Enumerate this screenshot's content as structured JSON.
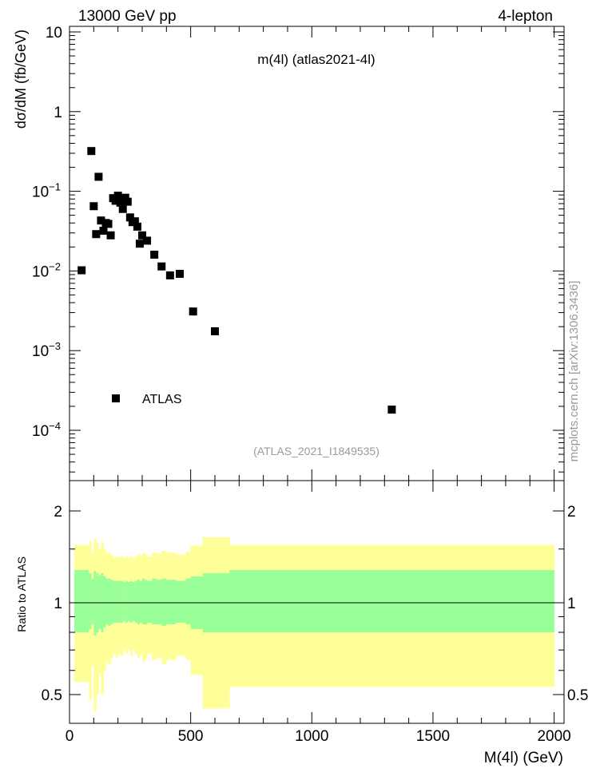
{
  "header": {
    "left": "13000 GeV pp",
    "right": "4-lepton"
  },
  "side_label": "mcplots.cern.ch [arXiv:1306.3436]",
  "chart_data": [
    {
      "panel": "main",
      "type": "scatter",
      "title": "m(4l) (atlas2021-4l)",
      "subtitle": "(ATLAS_2021_I1849535)",
      "xlabel": "M(4l) (GeV)",
      "ylabel": "dσ/dM (fb/GeV)",
      "xlim": [
        0,
        2000
      ],
      "ylim_log": [
        2e-05,
        10
      ],
      "yscale": "log",
      "y_ticks": [
        {
          "value": 10,
          "base": "10",
          "exp": ""
        },
        {
          "value": 1,
          "base": "1",
          "exp": ""
        },
        {
          "value": 0.1,
          "base": "10",
          "exp": "−1"
        },
        {
          "value": 0.01,
          "base": "10",
          "exp": "−2"
        },
        {
          "value": 0.001,
          "base": "10",
          "exp": "−3"
        },
        {
          "value": 0.0001,
          "base": "10",
          "exp": "−4"
        }
      ],
      "legend": {
        "label": "ATLAS",
        "placement": "lower-left"
      },
      "grid": false,
      "series": [
        {
          "name": "ATLAS",
          "marker": "square",
          "color": "#000000",
          "points": [
            [
              50,
              0.0102
            ],
            [
              90,
              0.32
            ],
            [
              100,
              0.065
            ],
            [
              110,
              0.029
            ],
            [
              120,
              0.152
            ],
            [
              130,
              0.043
            ],
            [
              140,
              0.032
            ],
            [
              150,
              0.04
            ],
            [
              160,
              0.039
            ],
            [
              170,
              0.028
            ],
            [
              180,
              0.082
            ],
            [
              190,
              0.076
            ],
            [
              200,
              0.088
            ],
            [
              210,
              0.072
            ],
            [
              220,
              0.06
            ],
            [
              230,
              0.083
            ],
            [
              240,
              0.074
            ],
            [
              250,
              0.047
            ],
            [
              260,
              0.041
            ],
            [
              270,
              0.042
            ],
            [
              280,
              0.036
            ],
            [
              290,
              0.022
            ],
            [
              300,
              0.028
            ],
            [
              320,
              0.024
            ],
            [
              350,
              0.016
            ],
            [
              380,
              0.0114
            ],
            [
              415,
              0.0088
            ],
            [
              455,
              0.0092
            ],
            [
              510,
              0.0031
            ],
            [
              600,
              0.00175
            ],
            [
              1330,
              0.000182
            ]
          ]
        }
      ]
    },
    {
      "panel": "ratio",
      "type": "area",
      "ylabel": "Ratio to ATLAS",
      "xlabel": "M(4l) (GeV)",
      "xlim": [
        0,
        2000
      ],
      "ylim_log": [
        0.4,
        2.4
      ],
      "yscale": "log",
      "y_ticks": [
        0.5,
        1,
        2
      ],
      "y_tick_labels": [
        "0.5",
        "1",
        "2"
      ],
      "x_ticks": [
        0,
        500,
        1000,
        1500,
        2000
      ],
      "reference_line": 1,
      "colors": {
        "inner_band": "#99ff99",
        "outer_band": "#ffff99"
      },
      "bins": [
        {
          "x0": 20,
          "x1": 80,
          "outer_lo": 0.55,
          "outer_hi": 1.55,
          "inner_lo": 0.8,
          "inner_hi": 1.28
        },
        {
          "x0": 80,
          "x1": 90,
          "outer_lo": 0.48,
          "outer_hi": 1.6,
          "inner_lo": 0.82,
          "inner_hi": 1.25
        },
        {
          "x0": 90,
          "x1": 100,
          "outer_lo": 0.62,
          "outer_hi": 1.45,
          "inner_lo": 0.85,
          "inner_hi": 1.2
        },
        {
          "x0": 100,
          "x1": 110,
          "outer_lo": 0.44,
          "outer_hi": 1.62,
          "inner_lo": 0.78,
          "inner_hi": 1.27
        },
        {
          "x0": 110,
          "x1": 120,
          "outer_lo": 0.5,
          "outer_hi": 1.57,
          "inner_lo": 0.8,
          "inner_hi": 1.25
        },
        {
          "x0": 120,
          "x1": 130,
          "outer_lo": 0.58,
          "outer_hi": 1.5,
          "inner_lo": 0.82,
          "inner_hi": 1.23
        },
        {
          "x0": 130,
          "x1": 140,
          "outer_lo": 0.5,
          "outer_hi": 1.58,
          "inner_lo": 0.8,
          "inner_hi": 1.25
        },
        {
          "x0": 140,
          "x1": 150,
          "outer_lo": 0.6,
          "outer_hi": 1.5,
          "inner_lo": 0.83,
          "inner_hi": 1.22
        },
        {
          "x0": 150,
          "x1": 160,
          "outer_lo": 0.64,
          "outer_hi": 1.45,
          "inner_lo": 0.85,
          "inner_hi": 1.2
        },
        {
          "x0": 160,
          "x1": 170,
          "outer_lo": 0.63,
          "outer_hi": 1.46,
          "inner_lo": 0.84,
          "inner_hi": 1.2
        },
        {
          "x0": 170,
          "x1": 180,
          "outer_lo": 0.66,
          "outer_hi": 1.43,
          "inner_lo": 0.85,
          "inner_hi": 1.19
        },
        {
          "x0": 180,
          "x1": 190,
          "outer_lo": 0.68,
          "outer_hi": 1.41,
          "inner_lo": 0.86,
          "inner_hi": 1.18
        },
        {
          "x0": 190,
          "x1": 200,
          "outer_lo": 0.66,
          "outer_hi": 1.42,
          "inner_lo": 0.86,
          "inner_hi": 1.18
        },
        {
          "x0": 200,
          "x1": 210,
          "outer_lo": 0.68,
          "outer_hi": 1.41,
          "inner_lo": 0.86,
          "inner_hi": 1.18
        },
        {
          "x0": 210,
          "x1": 220,
          "outer_lo": 0.67,
          "outer_hi": 1.42,
          "inner_lo": 0.86,
          "inner_hi": 1.18
        },
        {
          "x0": 220,
          "x1": 230,
          "outer_lo": 0.7,
          "outer_hi": 1.4,
          "inner_lo": 0.87,
          "inner_hi": 1.17
        },
        {
          "x0": 230,
          "x1": 240,
          "outer_lo": 0.68,
          "outer_hi": 1.42,
          "inner_lo": 0.86,
          "inner_hi": 1.18
        },
        {
          "x0": 240,
          "x1": 250,
          "outer_lo": 0.7,
          "outer_hi": 1.4,
          "inner_lo": 0.87,
          "inner_hi": 1.17
        },
        {
          "x0": 250,
          "x1": 260,
          "outer_lo": 0.67,
          "outer_hi": 1.42,
          "inner_lo": 0.86,
          "inner_hi": 1.18
        },
        {
          "x0": 260,
          "x1": 270,
          "outer_lo": 0.7,
          "outer_hi": 1.4,
          "inner_lo": 0.87,
          "inner_hi": 1.17
        },
        {
          "x0": 270,
          "x1": 280,
          "outer_lo": 0.68,
          "outer_hi": 1.42,
          "inner_lo": 0.86,
          "inner_hi": 1.18
        },
        {
          "x0": 280,
          "x1": 290,
          "outer_lo": 0.66,
          "outer_hi": 1.44,
          "inner_lo": 0.85,
          "inner_hi": 1.19
        },
        {
          "x0": 290,
          "x1": 300,
          "outer_lo": 0.68,
          "outer_hi": 1.42,
          "inner_lo": 0.86,
          "inner_hi": 1.18
        },
        {
          "x0": 300,
          "x1": 310,
          "outer_lo": 0.64,
          "outer_hi": 1.46,
          "inner_lo": 0.85,
          "inner_hi": 1.2
        },
        {
          "x0": 310,
          "x1": 320,
          "outer_lo": 0.66,
          "outer_hi": 1.44,
          "inner_lo": 0.85,
          "inner_hi": 1.19
        },
        {
          "x0": 320,
          "x1": 340,
          "outer_lo": 0.68,
          "outer_hi": 1.42,
          "inner_lo": 0.86,
          "inner_hi": 1.18
        },
        {
          "x0": 340,
          "x1": 360,
          "outer_lo": 0.65,
          "outer_hi": 1.46,
          "inner_lo": 0.85,
          "inner_hi": 1.2
        },
        {
          "x0": 360,
          "x1": 380,
          "outer_lo": 0.66,
          "outer_hi": 1.45,
          "inner_lo": 0.85,
          "inner_hi": 1.19
        },
        {
          "x0": 380,
          "x1": 400,
          "outer_lo": 0.63,
          "outer_hi": 1.48,
          "inner_lo": 0.84,
          "inner_hi": 1.2
        },
        {
          "x0": 400,
          "x1": 440,
          "outer_lo": 0.65,
          "outer_hi": 1.46,
          "inner_lo": 0.85,
          "inner_hi": 1.19
        },
        {
          "x0": 440,
          "x1": 480,
          "outer_lo": 0.67,
          "outer_hi": 1.44,
          "inner_lo": 0.86,
          "inner_hi": 1.18
        },
        {
          "x0": 480,
          "x1": 500,
          "outer_lo": 0.65,
          "outer_hi": 1.47,
          "inner_lo": 0.85,
          "inner_hi": 1.2
        },
        {
          "x0": 500,
          "x1": 550,
          "outer_lo": 0.58,
          "outer_hi": 1.54,
          "inner_lo": 0.82,
          "inner_hi": 1.22
        },
        {
          "x0": 550,
          "x1": 660,
          "outer_lo": 0.45,
          "outer_hi": 1.64,
          "inner_lo": 0.8,
          "inner_hi": 1.25
        },
        {
          "x0": 660,
          "x1": 2000,
          "outer_lo": 0.53,
          "outer_hi": 1.55,
          "inner_lo": 0.8,
          "inner_hi": 1.28
        }
      ]
    }
  ]
}
